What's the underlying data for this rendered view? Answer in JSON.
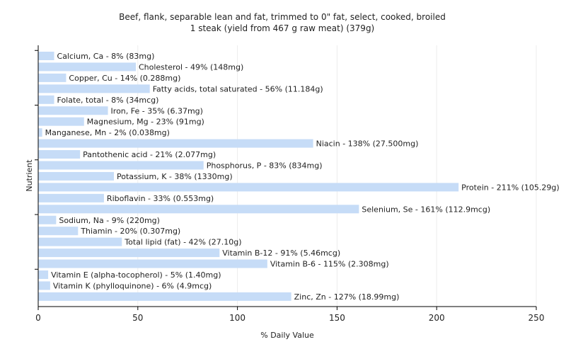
{
  "chart_data": {
    "type": "bar",
    "orientation": "horizontal",
    "title": "Beef, flank, separable lean and fat, trimmed to 0\" fat, select, cooked, broiled",
    "subtitle": "1 steak (yield from 467 g raw meat) (379g)",
    "xlabel": "% Daily Value",
    "ylabel": "Nutrient",
    "xlim": [
      0,
      250
    ],
    "xticks": [
      0,
      50,
      100,
      150,
      200,
      250
    ],
    "grid": true,
    "bar_color": "#c6dcf7",
    "categories": [
      "Calcium, Ca",
      "Cholesterol",
      "Copper, Cu",
      "Fatty acids, total saturated",
      "Folate, total",
      "Iron, Fe",
      "Magnesium, Mg",
      "Manganese, Mn",
      "Niacin",
      "Pantothenic acid",
      "Phosphorus, P",
      "Potassium, K",
      "Protein",
      "Riboflavin",
      "Selenium, Se",
      "Sodium, Na",
      "Thiamin",
      "Total lipid (fat)",
      "Vitamin B-12",
      "Vitamin B-6",
      "Vitamin E (alpha-tocopherol)",
      "Vitamin K (phylloquinone)",
      "Zinc, Zn"
    ],
    "values": [
      8,
      49,
      14,
      56,
      8,
      35,
      23,
      2,
      138,
      21,
      83,
      38,
      211,
      33,
      161,
      9,
      20,
      42,
      91,
      115,
      5,
      6,
      127
    ],
    "labels": [
      "Calcium, Ca - 8% (83mg)",
      "Cholesterol - 49% (148mg)",
      "Copper, Cu - 14% (0.288mg)",
      "Fatty acids, total saturated - 56% (11.184g)",
      "Folate, total - 8% (34mcg)",
      "Iron, Fe - 35% (6.37mg)",
      "Magnesium, Mg - 23% (91mg)",
      "Manganese, Mn - 2% (0.038mg)",
      "Niacin - 138% (27.500mg)",
      "Pantothenic acid - 21% (2.077mg)",
      "Phosphorus, P - 83% (834mg)",
      "Potassium, K - 38% (1330mg)",
      "Protein - 211% (105.29g)",
      "Riboflavin - 33% (0.553mg)",
      "Selenium, Se - 161% (112.9mcg)",
      "Sodium, Na - 9% (220mg)",
      "Thiamin - 20% (0.307mg)",
      "Total lipid (fat) - 42% (27.10g)",
      "Vitamin B-12 - 91% (5.46mcg)",
      "Vitamin B-6 - 115% (2.308mg)",
      "Vitamin E (alpha-tocopherol) - 5% (1.40mg)",
      "Vitamin K (phylloquinone) - 6% (4.9mcg)",
      "Zinc, Zn - 127% (18.99mg)"
    ]
  }
}
